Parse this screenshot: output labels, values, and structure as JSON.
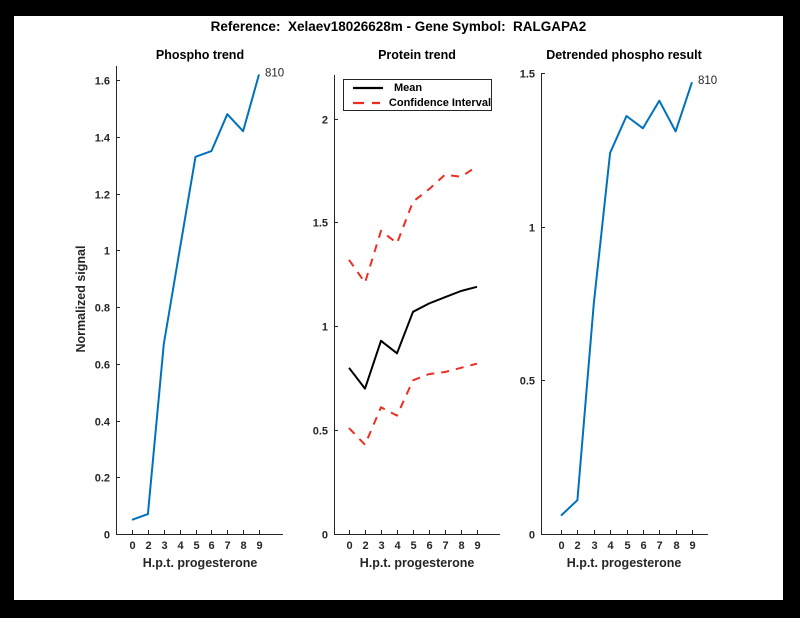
{
  "figure": {
    "title": "Reference:  Xelaev18026628m - Gene Symbol:  RALGAPA2",
    "colors": {
      "frame": "#000000",
      "figure_bg": "#ffffff",
      "axis": "#262626",
      "blue": "#0072bd",
      "red": "#f02d23",
      "black": "#000000"
    }
  },
  "legend": {
    "entries": [
      {
        "label": "Mean",
        "color": "#000000",
        "dash": ""
      },
      {
        "label": "Confidence Interval",
        "color": "#f02d23",
        "dash": "11 8"
      }
    ]
  },
  "chart_data": [
    {
      "type": "line",
      "title": "Phospho trend",
      "xlabel": "H.p.t. progesterone",
      "ylabel": "Normalized signal",
      "categories": [
        "0",
        "2",
        "3",
        "4",
        "5",
        "6",
        "7",
        "8",
        "9"
      ],
      "ylim": [
        0,
        1.65
      ],
      "yticks": [
        "0",
        "0.2",
        "0.4",
        "0.6",
        "0.8",
        "1",
        "1.2",
        "1.4",
        "1.6"
      ],
      "ytick_values": [
        0,
        0.2,
        0.4,
        0.6,
        0.8,
        1,
        1.2,
        1.4,
        1.6
      ],
      "grid": false,
      "series": [
        {
          "name": "phospho-signal",
          "color": "#0072bd",
          "dash": "",
          "width": 2,
          "values": [
            0.05,
            0.07,
            0.67,
            1.0,
            1.33,
            1.35,
            1.48,
            1.42,
            1.62
          ],
          "end_label": "810"
        }
      ]
    },
    {
      "type": "line",
      "title": "Protein trend",
      "xlabel": "H.p.t. progesterone",
      "ylabel": "",
      "categories": [
        "0",
        "2",
        "3",
        "4",
        "5",
        "6",
        "7",
        "8",
        "9"
      ],
      "ylim": [
        0,
        2.21
      ],
      "yticks": [
        "0",
        "0.5",
        "1",
        "1.5",
        "2"
      ],
      "ytick_values": [
        0,
        0.5,
        1,
        1.5,
        2
      ],
      "grid": false,
      "legend_position": "top-left",
      "series": [
        {
          "name": "mean",
          "color": "#000000",
          "dash": "",
          "width": 2,
          "values": [
            0.8,
            0.7,
            0.93,
            0.87,
            1.07,
            1.11,
            1.14,
            1.17,
            1.19
          ]
        },
        {
          "name": "confidence-upper",
          "color": "#f02d23",
          "dash": "8 7",
          "width": 2,
          "values": [
            1.32,
            1.21,
            1.46,
            1.4,
            1.6,
            1.66,
            1.73,
            1.72,
            1.77
          ]
        },
        {
          "name": "confidence-lower",
          "color": "#f02d23",
          "dash": "8 7",
          "width": 2,
          "values": [
            0.51,
            0.43,
            0.61,
            0.57,
            0.74,
            0.77,
            0.78,
            0.8,
            0.82
          ]
        }
      ]
    },
    {
      "type": "line",
      "title": "Detrended phospho result",
      "xlabel": "H.p.t. progesterone",
      "ylabel": "",
      "categories": [
        "0",
        "2",
        "3",
        "4",
        "5",
        "6",
        "7",
        "8",
        "9"
      ],
      "ylim": [
        0,
        1.5
      ],
      "yticks": [
        "0",
        "0.5",
        "1",
        "1.5"
      ],
      "ytick_values": [
        0,
        0.5,
        1,
        1.5
      ],
      "grid": false,
      "series": [
        {
          "name": "detrended-phospho",
          "color": "#0072bd",
          "dash": "",
          "width": 2,
          "values": [
            0.06,
            0.11,
            0.75,
            1.24,
            1.36,
            1.32,
            1.41,
            1.31,
            1.47
          ],
          "end_label": "810"
        }
      ]
    }
  ]
}
